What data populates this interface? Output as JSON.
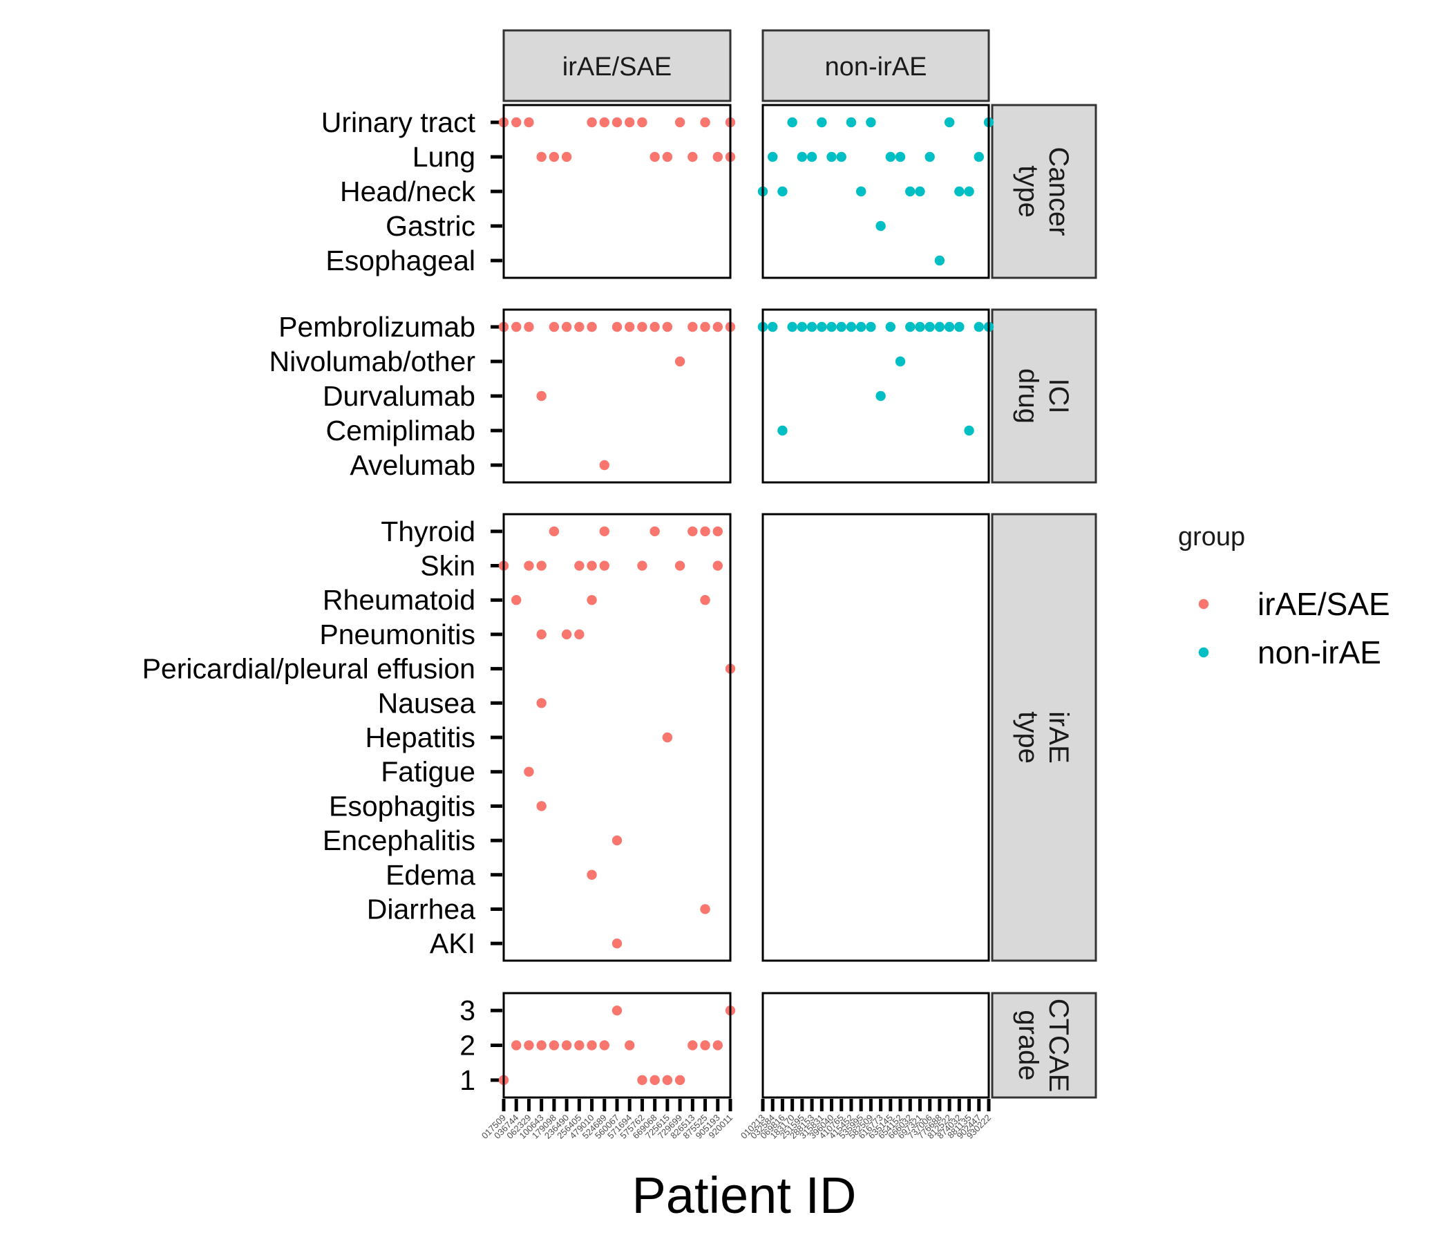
{
  "chart_data": {
    "type": "scatter",
    "xlabel": "Patient ID",
    "legend": {
      "title": "group",
      "position": "right",
      "entries": [
        {
          "name": "irAE/SAE",
          "color": "#F8766D"
        },
        {
          "name": "non-irAE",
          "color": "#00BFC4"
        }
      ]
    },
    "columns": [
      {
        "name": "irAE/SAE",
        "patients": [
          "017509",
          "036744",
          "062329",
          "100643",
          "179098",
          "236490",
          "256405",
          "479010",
          "524689",
          "560067",
          "571694",
          "575762",
          "669068",
          "725615",
          "729699",
          "826513",
          "875525",
          "905193",
          "920011"
        ]
      },
      {
        "name": "non-irAE",
        "patients": [
          "010213",
          "032584",
          "069816",
          "183170",
          "251595",
          "288153",
          "315831",
          "396040",
          "410765",
          "415452",
          "535995",
          "582509",
          "616773",
          "635145",
          "654152",
          "666032",
          "697321",
          "737006",
          "776688",
          "812522",
          "874032",
          "881135",
          "902447",
          "930222"
        ]
      }
    ],
    "rows": [
      {
        "name": "Cancer\ntype",
        "categories": [
          "Urinary tract",
          "Lung",
          "Head/neck",
          "Gastric",
          "Esophageal"
        ],
        "points": [
          {
            "col": 0,
            "x": "017509",
            "y": "Urinary tract"
          },
          {
            "col": 0,
            "x": "036744",
            "y": "Urinary tract"
          },
          {
            "col": 0,
            "x": "062329",
            "y": "Urinary tract"
          },
          {
            "col": 0,
            "x": "100643",
            "y": "Lung"
          },
          {
            "col": 0,
            "x": "179098",
            "y": "Lung"
          },
          {
            "col": 0,
            "x": "236490",
            "y": "Lung"
          },
          {
            "col": 0,
            "x": "479010",
            "y": "Urinary tract"
          },
          {
            "col": 0,
            "x": "524689",
            "y": "Urinary tract"
          },
          {
            "col": 0,
            "x": "560067",
            "y": "Urinary tract"
          },
          {
            "col": 0,
            "x": "571694",
            "y": "Urinary tract"
          },
          {
            "col": 0,
            "x": "575762",
            "y": "Urinary tract"
          },
          {
            "col": 0,
            "x": "669068",
            "y": "Lung"
          },
          {
            "col": 0,
            "x": "725615",
            "y": "Lung"
          },
          {
            "col": 0,
            "x": "729699",
            "y": "Urinary tract"
          },
          {
            "col": 0,
            "x": "826513",
            "y": "Lung"
          },
          {
            "col": 0,
            "x": "875525",
            "y": "Urinary tract"
          },
          {
            "col": 0,
            "x": "905193",
            "y": "Lung"
          },
          {
            "col": 0,
            "x": "920011",
            "y": "Urinary tract"
          },
          {
            "col": 0,
            "x": "920011",
            "y": "Lung"
          },
          {
            "col": 1,
            "x": "010213",
            "y": "Head/neck"
          },
          {
            "col": 1,
            "x": "032584",
            "y": "Lung"
          },
          {
            "col": 1,
            "x": "069816",
            "y": "Head/neck"
          },
          {
            "col": 1,
            "x": "183170",
            "y": "Urinary tract"
          },
          {
            "col": 1,
            "x": "251595",
            "y": "Lung"
          },
          {
            "col": 1,
            "x": "288153",
            "y": "Lung"
          },
          {
            "col": 1,
            "x": "315831",
            "y": "Urinary tract"
          },
          {
            "col": 1,
            "x": "396040",
            "y": "Lung"
          },
          {
            "col": 1,
            "x": "410765",
            "y": "Lung"
          },
          {
            "col": 1,
            "x": "415452",
            "y": "Urinary tract"
          },
          {
            "col": 1,
            "x": "535995",
            "y": "Head/neck"
          },
          {
            "col": 1,
            "x": "582509",
            "y": "Urinary tract"
          },
          {
            "col": 1,
            "x": "616773",
            "y": "Gastric"
          },
          {
            "col": 1,
            "x": "635145",
            "y": "Lung"
          },
          {
            "col": 1,
            "x": "654152",
            "y": "Lung"
          },
          {
            "col": 1,
            "x": "666032",
            "y": "Head/neck"
          },
          {
            "col": 1,
            "x": "697321",
            "y": "Head/neck"
          },
          {
            "col": 1,
            "x": "737006",
            "y": "Lung"
          },
          {
            "col": 1,
            "x": "776688",
            "y": "Esophageal"
          },
          {
            "col": 1,
            "x": "812522",
            "y": "Urinary tract"
          },
          {
            "col": 1,
            "x": "874032",
            "y": "Head/neck"
          },
          {
            "col": 1,
            "x": "881135",
            "y": "Head/neck"
          },
          {
            "col": 1,
            "x": "902447",
            "y": "Lung"
          },
          {
            "col": 1,
            "x": "930222",
            "y": "Urinary tract"
          }
        ]
      },
      {
        "name": "ICI\ndrug",
        "categories": [
          "Pembrolizumab",
          "Nivolumab/other",
          "Durvalumab",
          "Cemiplimab",
          "Avelumab"
        ],
        "points": [
          {
            "col": 0,
            "x": "017509",
            "y": "Pembrolizumab"
          },
          {
            "col": 0,
            "x": "036744",
            "y": "Pembrolizumab"
          },
          {
            "col": 0,
            "x": "062329",
            "y": "Pembrolizumab"
          },
          {
            "col": 0,
            "x": "100643",
            "y": "Durvalumab"
          },
          {
            "col": 0,
            "x": "179098",
            "y": "Pembrolizumab"
          },
          {
            "col": 0,
            "x": "236490",
            "y": "Pembrolizumab"
          },
          {
            "col": 0,
            "x": "256405",
            "y": "Pembrolizumab"
          },
          {
            "col": 0,
            "x": "479010",
            "y": "Pembrolizumab"
          },
          {
            "col": 0,
            "x": "524689",
            "y": "Avelumab"
          },
          {
            "col": 0,
            "x": "560067",
            "y": "Pembrolizumab"
          },
          {
            "col": 0,
            "x": "571694",
            "y": "Pembrolizumab"
          },
          {
            "col": 0,
            "x": "575762",
            "y": "Pembrolizumab"
          },
          {
            "col": 0,
            "x": "669068",
            "y": "Pembrolizumab"
          },
          {
            "col": 0,
            "x": "725615",
            "y": "Pembrolizumab"
          },
          {
            "col": 0,
            "x": "729699",
            "y": "Nivolumab/other"
          },
          {
            "col": 0,
            "x": "826513",
            "y": "Pembrolizumab"
          },
          {
            "col": 0,
            "x": "875525",
            "y": "Pembrolizumab"
          },
          {
            "col": 0,
            "x": "905193",
            "y": "Pembrolizumab"
          },
          {
            "col": 0,
            "x": "920011",
            "y": "Pembrolizumab"
          },
          {
            "col": 1,
            "x": "010213",
            "y": "Pembrolizumab"
          },
          {
            "col": 1,
            "x": "032584",
            "y": "Pembrolizumab"
          },
          {
            "col": 1,
            "x": "069816",
            "y": "Cemiplimab"
          },
          {
            "col": 1,
            "x": "183170",
            "y": "Pembrolizumab"
          },
          {
            "col": 1,
            "x": "251595",
            "y": "Pembrolizumab"
          },
          {
            "col": 1,
            "x": "288153",
            "y": "Pembrolizumab"
          },
          {
            "col": 1,
            "x": "315831",
            "y": "Pembrolizumab"
          },
          {
            "col": 1,
            "x": "396040",
            "y": "Pembrolizumab"
          },
          {
            "col": 1,
            "x": "410765",
            "y": "Pembrolizumab"
          },
          {
            "col": 1,
            "x": "415452",
            "y": "Pembrolizumab"
          },
          {
            "col": 1,
            "x": "535995",
            "y": "Pembrolizumab"
          },
          {
            "col": 1,
            "x": "582509",
            "y": "Pembrolizumab"
          },
          {
            "col": 1,
            "x": "616773",
            "y": "Durvalumab"
          },
          {
            "col": 1,
            "x": "635145",
            "y": "Pembrolizumab"
          },
          {
            "col": 1,
            "x": "654152",
            "y": "Nivolumab/other"
          },
          {
            "col": 1,
            "x": "666032",
            "y": "Pembrolizumab"
          },
          {
            "col": 1,
            "x": "697321",
            "y": "Pembrolizumab"
          },
          {
            "col": 1,
            "x": "737006",
            "y": "Pembrolizumab"
          },
          {
            "col": 1,
            "x": "776688",
            "y": "Pembrolizumab"
          },
          {
            "col": 1,
            "x": "812522",
            "y": "Pembrolizumab"
          },
          {
            "col": 1,
            "x": "874032",
            "y": "Pembrolizumab"
          },
          {
            "col": 1,
            "x": "881135",
            "y": "Cemiplimab"
          },
          {
            "col": 1,
            "x": "902447",
            "y": "Pembrolizumab"
          },
          {
            "col": 1,
            "x": "930222",
            "y": "Pembrolizumab"
          }
        ]
      },
      {
        "name": "irAE\ntype",
        "categories": [
          "Thyroid",
          "Skin",
          "Rheumatoid",
          "Pneumonitis",
          "Pericardial/pleural effusion",
          "Nausea",
          "Hepatitis",
          "Fatigue",
          "Esophagitis",
          "Encephalitis",
          "Edema",
          "Diarrhea",
          "AKI"
        ],
        "points": [
          {
            "col": 0,
            "x": "017509",
            "y": "Skin"
          },
          {
            "col": 0,
            "x": "036744",
            "y": "Rheumatoid"
          },
          {
            "col": 0,
            "x": "062329",
            "y": "Skin"
          },
          {
            "col": 0,
            "x": "062329",
            "y": "Fatigue"
          },
          {
            "col": 0,
            "x": "100643",
            "y": "Skin"
          },
          {
            "col": 0,
            "x": "100643",
            "y": "Pneumonitis"
          },
          {
            "col": 0,
            "x": "100643",
            "y": "Nausea"
          },
          {
            "col": 0,
            "x": "100643",
            "y": "Esophagitis"
          },
          {
            "col": 0,
            "x": "179098",
            "y": "Thyroid"
          },
          {
            "col": 0,
            "x": "236490",
            "y": "Pneumonitis"
          },
          {
            "col": 0,
            "x": "479010",
            "y": "Skin"
          },
          {
            "col": 0,
            "x": "479010",
            "y": "Rheumatoid"
          },
          {
            "col": 0,
            "x": "479010",
            "y": "Edema"
          },
          {
            "col": 0,
            "x": "256405",
            "y": "Skin"
          },
          {
            "col": 0,
            "x": "256405",
            "y": "Pneumonitis"
          },
          {
            "col": 0,
            "x": "524689",
            "y": "Thyroid"
          },
          {
            "col": 0,
            "x": "524689",
            "y": "Skin"
          },
          {
            "col": 0,
            "x": "560067",
            "y": "Encephalitis"
          },
          {
            "col": 0,
            "x": "560067",
            "y": "AKI"
          },
          {
            "col": 0,
            "x": "575762",
            "y": "Skin"
          },
          {
            "col": 0,
            "x": "669068",
            "y": "Thyroid"
          },
          {
            "col": 0,
            "x": "725615",
            "y": "Hepatitis"
          },
          {
            "col": 0,
            "x": "729699",
            "y": "Skin"
          },
          {
            "col": 0,
            "x": "826513",
            "y": "Thyroid"
          },
          {
            "col": 0,
            "x": "875525",
            "y": "Thyroid"
          },
          {
            "col": 0,
            "x": "875525",
            "y": "Rheumatoid"
          },
          {
            "col": 0,
            "x": "875525",
            "y": "Diarrhea"
          },
          {
            "col": 0,
            "x": "905193",
            "y": "Thyroid"
          },
          {
            "col": 0,
            "x": "905193",
            "y": "Skin"
          },
          {
            "col": 0,
            "x": "920011",
            "y": "Pericardial/pleural effusion"
          }
        ]
      },
      {
        "name": "CTCAE\ngrade",
        "categories": [
          "3",
          "2",
          "1"
        ],
        "points": [
          {
            "col": 0,
            "x": "017509",
            "y": "1"
          },
          {
            "col": 0,
            "x": "036744",
            "y": "2"
          },
          {
            "col": 0,
            "x": "062329",
            "y": "2"
          },
          {
            "col": 0,
            "x": "100643",
            "y": "2"
          },
          {
            "col": 0,
            "x": "179098",
            "y": "2"
          },
          {
            "col": 0,
            "x": "236490",
            "y": "2"
          },
          {
            "col": 0,
            "x": "256405",
            "y": "2"
          },
          {
            "col": 0,
            "x": "479010",
            "y": "2"
          },
          {
            "col": 0,
            "x": "524689",
            "y": "2"
          },
          {
            "col": 0,
            "x": "560067",
            "y": "3"
          },
          {
            "col": 0,
            "x": "571694",
            "y": "2"
          },
          {
            "col": 0,
            "x": "575762",
            "y": "1"
          },
          {
            "col": 0,
            "x": "669068",
            "y": "1"
          },
          {
            "col": 0,
            "x": "725615",
            "y": "1"
          },
          {
            "col": 0,
            "x": "729699",
            "y": "1"
          },
          {
            "col": 0,
            "x": "826513",
            "y": "2"
          },
          {
            "col": 0,
            "x": "875525",
            "y": "2"
          },
          {
            "col": 0,
            "x": "905193",
            "y": "2"
          },
          {
            "col": 0,
            "x": "920011",
            "y": "3"
          }
        ]
      }
    ]
  }
}
